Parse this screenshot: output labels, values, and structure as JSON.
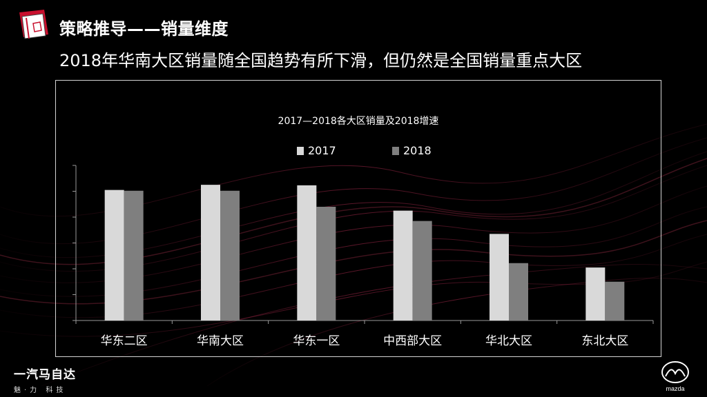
{
  "header": {
    "title": "策略推导——销量维度",
    "subtitle": "2018年华南大区销量随全国趋势有所下滑，但仍然是全国销量重点大区"
  },
  "chart_data": {
    "type": "bar",
    "title": "2017—2018各大区销量及2018增速",
    "categories": [
      "华东二区",
      "华南大区",
      "华东一区",
      "中西部大区",
      "华北大区",
      "东北大区"
    ],
    "series": [
      {
        "name": "2017",
        "values": [
          5.05,
          5.25,
          5.23,
          4.25,
          3.35,
          2.05
        ],
        "color": "#d9d9d9"
      },
      {
        "name": "2018",
        "values": [
          5.02,
          5.02,
          4.4,
          3.85,
          2.22,
          1.5
        ],
        "color": "#7f7f7f"
      }
    ],
    "ylim": [
      0,
      6
    ],
    "ytick_count": 6,
    "legend": "top-center",
    "grid": false,
    "xlabel": "",
    "ylabel": ""
  },
  "footer": {
    "brand_name": "一汽马自达",
    "brand_tagline": "魅·力 科技",
    "logo_text": "mazda"
  },
  "icons": {
    "header_logo": "notebook-icon",
    "brand_logo": "mazda-logo"
  },
  "colors": {
    "background": "#000000",
    "accent_red": "#c8102e",
    "streak": "#8a1f3a"
  }
}
